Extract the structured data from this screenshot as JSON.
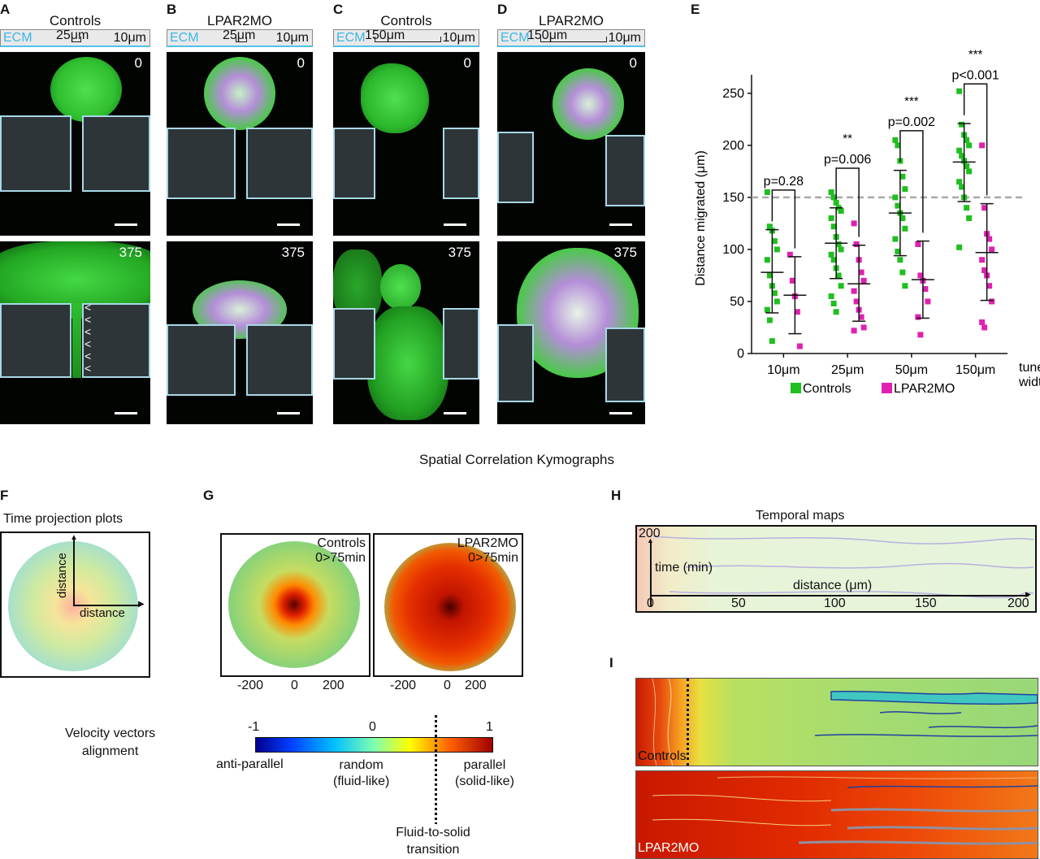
{
  "panels": {
    "A": {
      "letter": "A",
      "title": "Controls",
      "ecm": "ECM",
      "tunnel": "25μm",
      "gap": "10μm",
      "t0": "0",
      "t1": "375"
    },
    "B": {
      "letter": "B",
      "title": "LPAR2MO",
      "ecm": "ECM",
      "tunnel": "25μm",
      "gap": "10μm",
      "t0": "0",
      "t1": "375"
    },
    "C": {
      "letter": "C",
      "title": "Controls",
      "ecm": "ECM",
      "tunnel": "150μm",
      "gap": "10μm",
      "t0": "0",
      "t1": "375"
    },
    "D": {
      "letter": "D",
      "title": "LPAR2MO",
      "ecm": "ECM",
      "tunnel": "150μm",
      "gap": "10μm",
      "t0": "0",
      "t1": "375"
    },
    "E": {
      "letter": "E"
    },
    "F": {
      "letter": "F",
      "title": "Time projection plots",
      "axis_y": "distance",
      "axis_x": "distance"
    },
    "G": {
      "letter": "G",
      "left_label_1": "Controls",
      "left_label_2": "0>75min",
      "right_label_1": "LPAR2MO",
      "right_label_2": "0>75min",
      "ticks": [
        "-200",
        "0",
        "200"
      ]
    },
    "H": {
      "letter": "H",
      "title": "Temporal maps",
      "y_label": "time (min)",
      "y_top": "200",
      "x_label": "distance (μm)",
      "x_ticks": [
        "0",
        "50",
        "100",
        "150",
        "200"
      ]
    },
    "I": {
      "letter": "I",
      "top_label": "Controls",
      "bottom_label": "LPAR2MO"
    }
  },
  "section_title": "Spatial Correlation Kymographs",
  "colorbar": {
    "title_1": "Velocity vectors",
    "title_2": "alignment",
    "ticks": [
      "-1",
      "0",
      "1"
    ],
    "left_1": "anti-parallel",
    "mid_1": "random",
    "mid_2": "(fluid-like)",
    "right_1": "parallel",
    "right_2": "(solid-like)",
    "trans_1": "Fluid-to-solid",
    "trans_2": "transition"
  },
  "chart_data": {
    "type": "scatter",
    "title": "",
    "xlabel": "tunel width",
    "ylabel": "Distance migrated (μm)",
    "ylim": [
      0,
      260
    ],
    "yticks": [
      "0",
      "50",
      "100",
      "150",
      "200",
      "250"
    ],
    "categories": [
      "10μm",
      "25μm",
      "50μm",
      "150μm"
    ],
    "reference_line": 150,
    "legend": [
      "Controls",
      "LPAR2MO"
    ],
    "colors": {
      "Controls": "#1fbf1f",
      "LPAR2MO": "#e020b0"
    },
    "series": [
      {
        "name": "Controls",
        "mean": [
          78,
          106,
          135,
          184
        ],
        "sd_low": [
          39,
          72,
          94,
          146
        ],
        "sd_high": [
          119,
          140,
          176,
          221
        ],
        "points": [
          [
            155,
            122,
            118,
            108,
            100,
            90,
            75,
            65,
            58,
            50,
            42,
            32,
            12
          ],
          [
            155,
            150,
            145,
            140,
            137,
            130,
            122,
            112,
            105,
            100,
            95,
            90,
            82,
            75,
            65,
            55,
            48,
            40
          ],
          [
            205,
            200,
            185,
            170,
            158,
            150,
            142,
            135,
            130,
            120,
            110,
            98,
            90,
            78,
            65
          ],
          [
            252,
            220,
            210,
            205,
            200,
            195,
            190,
            185,
            180,
            175,
            165,
            160,
            150,
            140,
            130,
            102
          ]
        ]
      },
      {
        "name": "LPAR2MO",
        "mean": [
          56,
          67,
          71,
          97
        ],
        "sd_low": [
          19,
          31,
          34,
          51
        ],
        "sd_high": [
          93,
          104,
          108,
          144
        ],
        "points": [
          [
            95,
            70,
            55,
            40,
            7
          ],
          [
            125,
            105,
            90,
            78,
            70,
            60,
            50,
            42,
            35,
            25,
            22
          ],
          [
            105,
            75,
            70,
            62,
            50,
            35,
            18
          ],
          [
            200,
            140,
            115,
            110,
            100,
            90,
            80,
            75,
            65,
            50,
            30,
            25
          ]
        ]
      }
    ],
    "comparisons": [
      {
        "p": "p=0.28",
        "stars": ""
      },
      {
        "p": "p=0.006",
        "stars": "**"
      },
      {
        "p": "p=0.002",
        "stars": "***"
      },
      {
        "p": "p<0.001",
        "stars": "***"
      }
    ]
  }
}
